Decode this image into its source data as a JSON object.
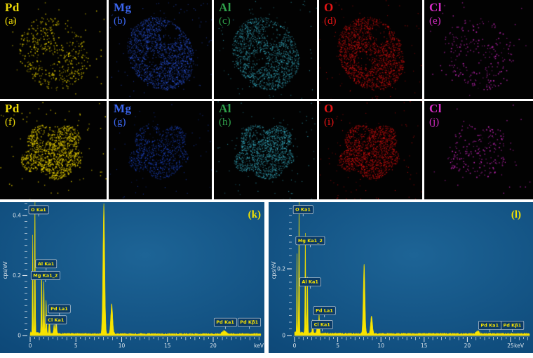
{
  "theme": {
    "page_bg": "#ffffff",
    "map_bg": "#020202",
    "spectrum_bg_outer": "#0d4878",
    "spectrum_bg_inner": "#1d6496",
    "spectrum_fill": "#f8e400",
    "axis_text": "#dfe6ec",
    "box_fill": "#0b3a66",
    "box_border": "#c8d2da",
    "box_text": "#f8e400",
    "corner_label_color": "#f2e200"
  },
  "map_panels": [
    {
      "id": "a",
      "element": "Pd",
      "sub_label": "(a)",
      "label_color": "#ecd908",
      "dot_color": "#dcc700",
      "shape": "blob-ring",
      "density": 430,
      "dot_size": 1.5,
      "seed": 101
    },
    {
      "id": "b",
      "element": "Mg",
      "sub_label": "(b)",
      "label_color": "#3b66ef",
      "dot_color": "#2c58e8",
      "shape": "blob-ring",
      "density": 1650,
      "dot_size": 1.05,
      "seed": 102
    },
    {
      "id": "c",
      "element": "Al",
      "sub_label": "(c)",
      "label_color": "#2fa04a",
      "dot_color": "#38b4ca",
      "shape": "blob-ring",
      "density": 1450,
      "dot_size": 1.05,
      "seed": 103
    },
    {
      "id": "d",
      "element": "O",
      "sub_label": "(d)",
      "label_color": "#e51414",
      "dot_color": "#de1010",
      "shape": "blob-ring",
      "density": 1750,
      "dot_size": 1.05,
      "seed": 104
    },
    {
      "id": "e",
      "element": "Cl",
      "sub_label": "(e)",
      "label_color": "#d42cc4",
      "dot_color": "#ce28c0",
      "shape": "blob-ring",
      "density": 215,
      "dot_size": 1.4,
      "seed": 105
    },
    {
      "id": "f",
      "element": "Pd",
      "sub_label": "(f)",
      "label_color": "#ecd908",
      "dot_color": "#e3cc00",
      "shape": "blob-heart",
      "density": 1080,
      "dot_size": 1.45,
      "seed": 106
    },
    {
      "id": "g",
      "element": "Mg",
      "sub_label": "(g)",
      "label_color": "#3b66ef",
      "dot_color": "#1f48cf",
      "shape": "blob-heart",
      "density": 880,
      "dot_size": 1.05,
      "seed": 107
    },
    {
      "id": "h",
      "element": "Al",
      "sub_label": "(h)",
      "label_color": "#2fa04a",
      "dot_color": "#38b4ca",
      "shape": "blob-heart",
      "density": 1380,
      "dot_size": 1.05,
      "seed": 108
    },
    {
      "id": "i",
      "element": "O",
      "sub_label": "(i)",
      "label_color": "#e51414",
      "dot_color": "#de1010",
      "shape": "blob-heart",
      "density": 1520,
      "dot_size": 1.05,
      "seed": 109
    },
    {
      "id": "j",
      "element": "Cl",
      "sub_label": "(j)",
      "label_color": "#d42cc4",
      "dot_color": "#ce28c0",
      "shape": "blob-heart",
      "density": 205,
      "dot_size": 1.4,
      "seed": 110
    }
  ],
  "chart_data": [
    {
      "type": "area",
      "panel_label": "(k)",
      "xlabel": "keV",
      "ylabel": "cps/eV",
      "xlim": [
        0,
        25.2
      ],
      "ylim": [
        0,
        0.445
      ],
      "xticks": [
        0,
        5,
        10,
        15,
        20
      ],
      "yticks": [
        0,
        0.2,
        0.4
      ],
      "ytick_labels": [
        "0",
        "0.2",
        "0.4"
      ],
      "grid": false,
      "legend": "none",
      "series": [
        {
          "name": "edx-counts",
          "peaks": [
            [
              0.28,
              0.33
            ],
            [
              0.52,
              0.445
            ],
            [
              1.25,
              0.205
            ],
            [
              1.49,
              0.175
            ],
            [
              1.74,
              0.11
            ],
            [
              2.1,
              0.05
            ],
            [
              2.62,
              0.028
            ],
            [
              2.84,
              0.05
            ],
            [
              8.05,
              0.435
            ],
            [
              8.91,
              0.1
            ],
            [
              21.2,
              0.01
            ]
          ]
        }
      ],
      "peak_labels": [
        {
          "text": "O Ka1",
          "kev": -0.15,
          "cps": 0.405
        },
        {
          "text": "Al Ka1",
          "kev": 0.6,
          "cps": 0.225
        },
        {
          "text": "Mg Ka1_2",
          "kev": 0.1,
          "cps": 0.186
        },
        {
          "text": "Pd La1",
          "kev": 2.0,
          "cps": 0.075
        },
        {
          "text": "Cl Ka1",
          "kev": 1.7,
          "cps": 0.038
        },
        {
          "text": "Pd Ka1",
          "kev": 20.1,
          "cps": 0.03
        },
        {
          "text": "Pd Kβ1",
          "kev": 22.7,
          "cps": 0.03
        }
      ]
    },
    {
      "type": "area",
      "panel_label": "(l)",
      "xlabel": "keV",
      "ylabel": "cps/eV",
      "xlim": [
        0,
        27.2
      ],
      "ylim": [
        0,
        0.4
      ],
      "xticks": [
        0,
        5,
        10,
        15,
        20,
        25
      ],
      "yticks": [
        0,
        0.2,
        0.4
      ],
      "ytick_labels": [
        "0",
        "0.2",
        ""
      ],
      "grid": false,
      "legend": "none",
      "series": [
        {
          "name": "edx-counts",
          "peaks": [
            [
              0.28,
              0.24
            ],
            [
              0.52,
              0.4
            ],
            [
              1.25,
              0.3
            ],
            [
              1.49,
              0.17
            ],
            [
              2.1,
              0.04
            ],
            [
              2.62,
              0.025
            ],
            [
              2.84,
              0.06
            ],
            [
              8.05,
              0.21
            ],
            [
              8.91,
              0.055
            ],
            [
              21.2,
              0.008
            ]
          ]
        }
      ],
      "peak_labels": [
        {
          "text": "O Ka1",
          "kev": -0.15,
          "cps": 0.365
        },
        {
          "text": "Mg Ka1_2",
          "kev": 0.15,
          "cps": 0.272
        },
        {
          "text": "Al Ka1",
          "kev": 0.6,
          "cps": 0.148
        },
        {
          "text": "Pd La1",
          "kev": 2.2,
          "cps": 0.062
        },
        {
          "text": "Cl Ka1",
          "kev": 2.0,
          "cps": 0.02
        },
        {
          "text": "Pd Ka1",
          "kev": 21.3,
          "cps": 0.018
        },
        {
          "text": "Pd Kβ1",
          "kev": 23.9,
          "cps": 0.018
        }
      ]
    }
  ]
}
